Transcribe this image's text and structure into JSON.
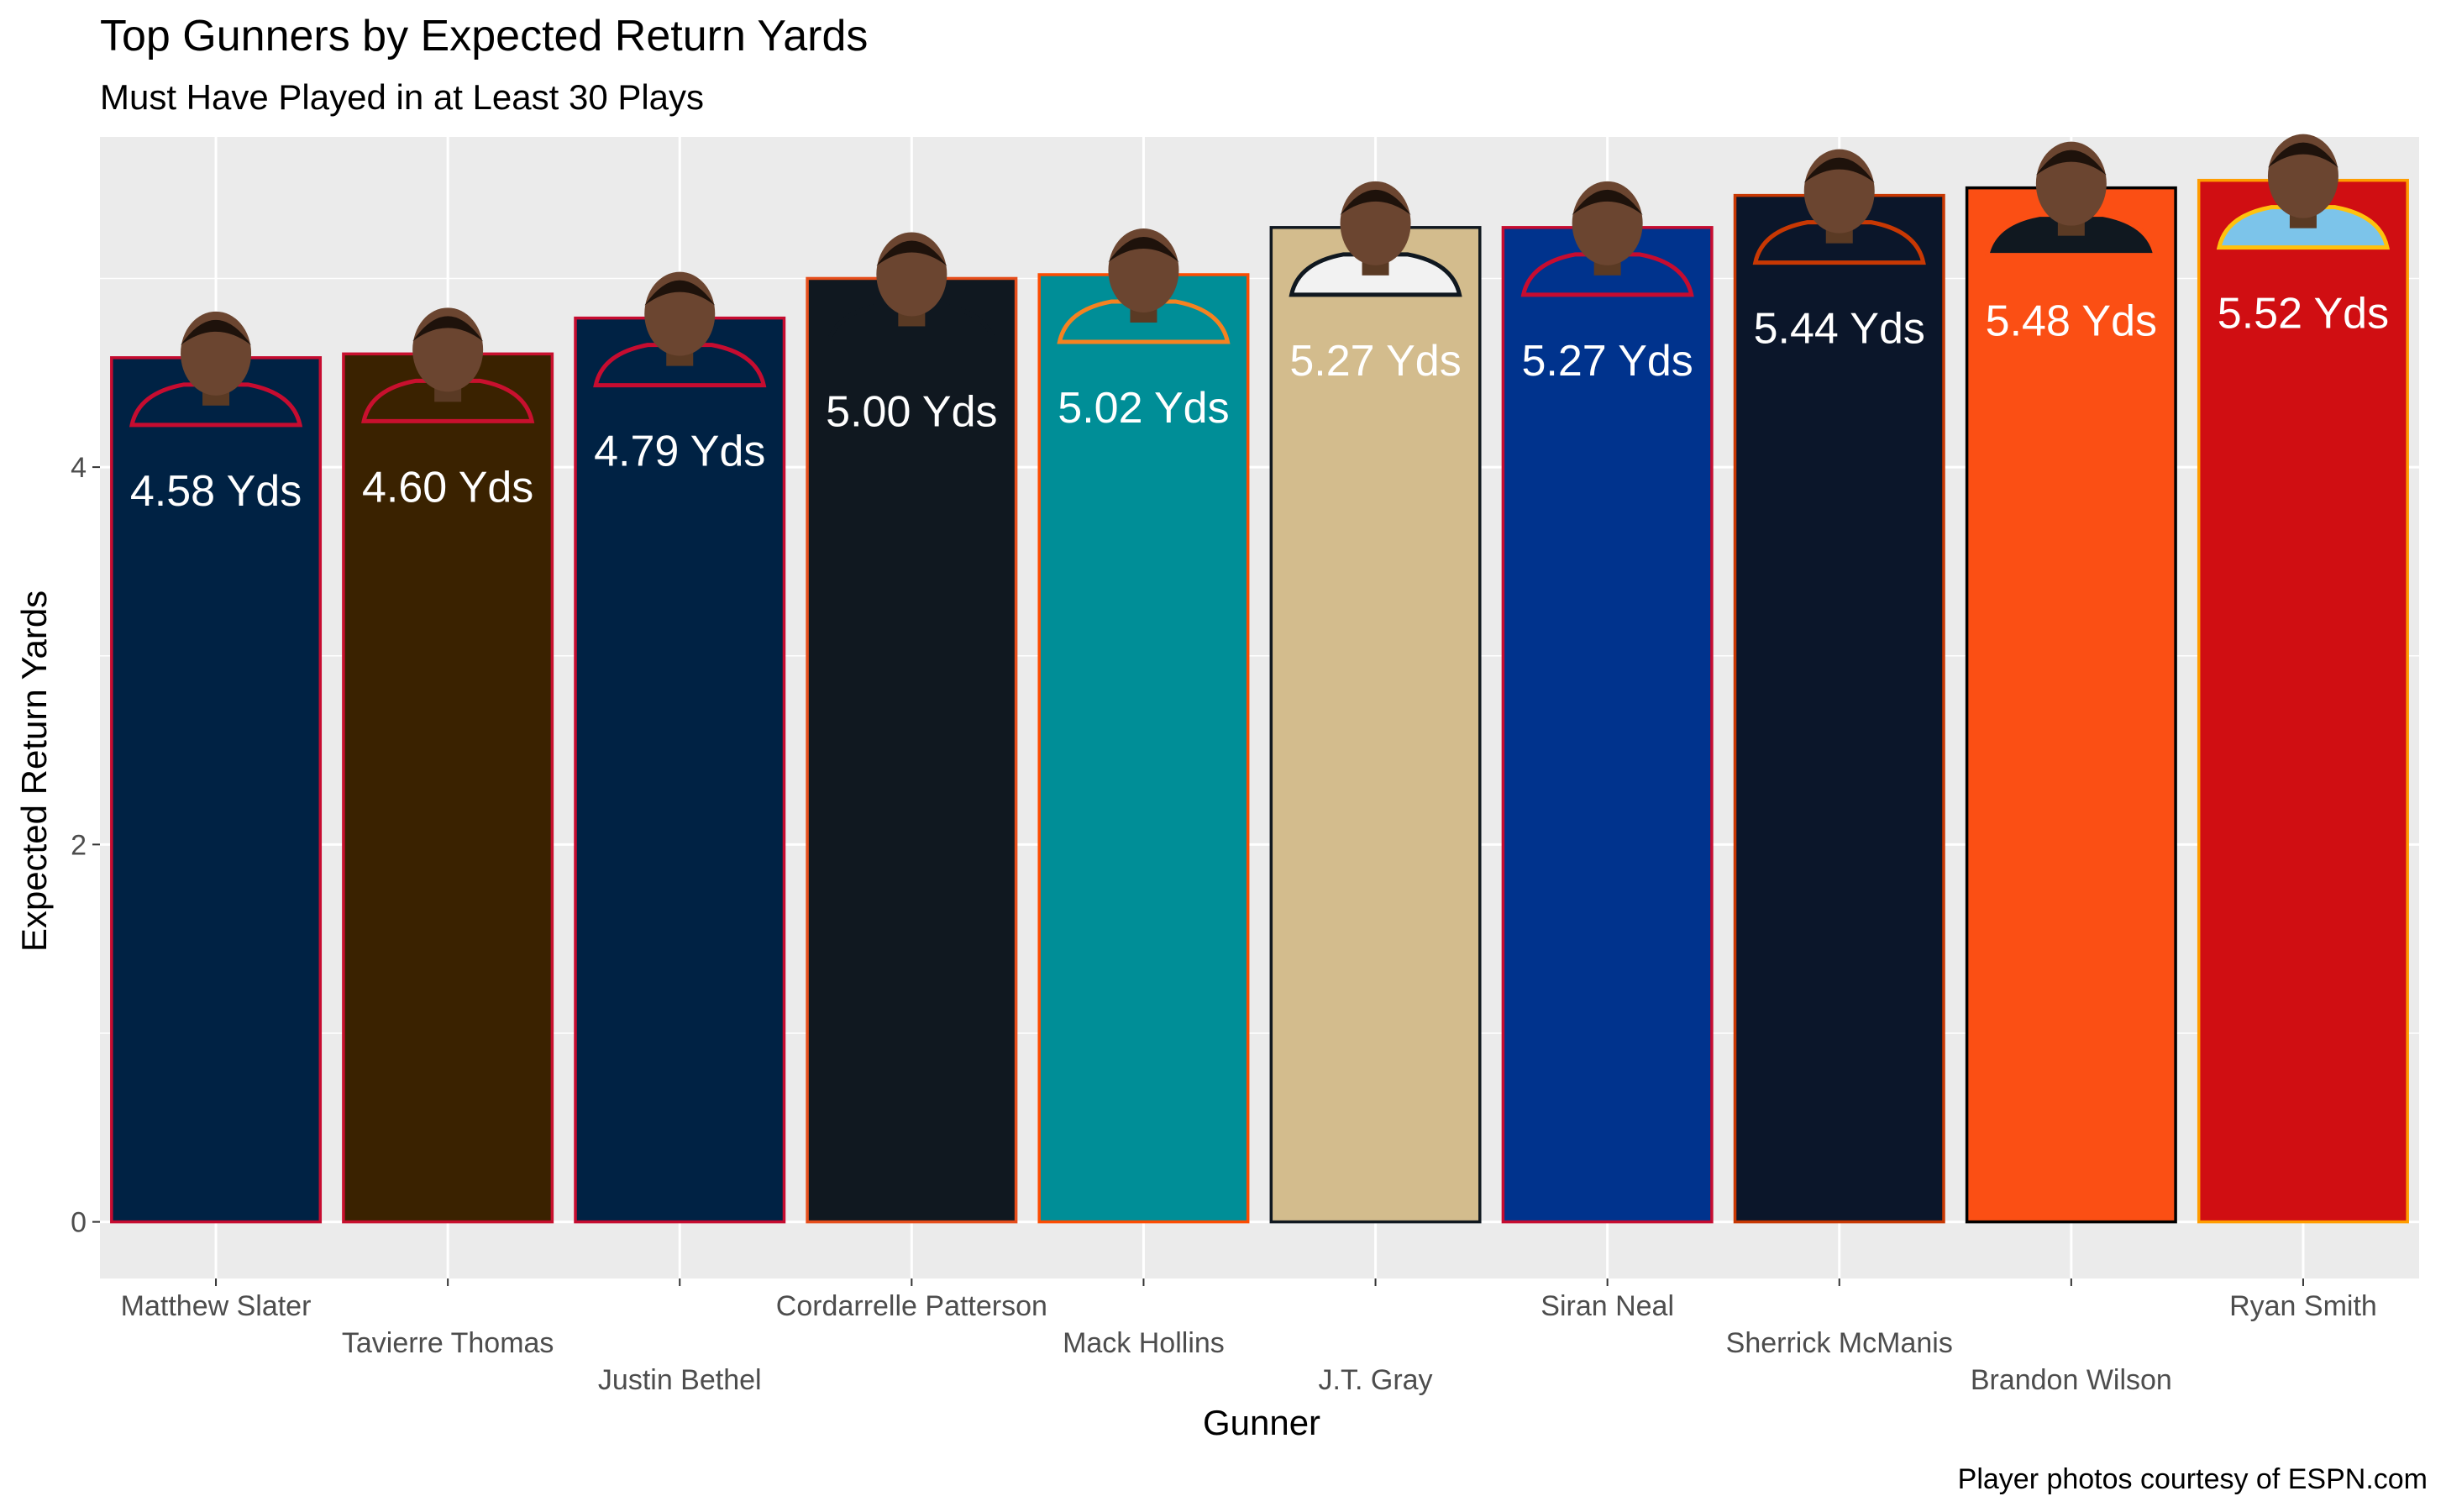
{
  "chart_data": {
    "type": "bar",
    "title": "Top Gunners by Expected Return Yards",
    "subtitle": "Must Have Played in at Least 30 Plays",
    "xlabel": "Gunner",
    "ylabel": "Expected Return Yards",
    "caption": "Player photos courtesy of ESPN.com",
    "ylim": [
      -0.3,
      5.75
    ],
    "yticks": [
      0,
      2,
      4
    ],
    "grid": true,
    "categories": [
      "Matthew Slater",
      "Tavierre Thomas",
      "Justin Bethel",
      "Cordarrelle Patterson",
      "Mack Hollins",
      "J.T. Gray",
      "Siran Neal",
      "Sherrick McManis",
      "Brandon Wilson",
      "Ryan Smith"
    ],
    "values": [
      4.58,
      4.6,
      4.79,
      5.0,
      5.02,
      5.27,
      5.27,
      5.44,
      5.48,
      5.52
    ],
    "data_labels": [
      "4.58 Yds",
      "4.60 Yds",
      "4.79 Yds",
      "5.00 Yds",
      "5.02 Yds",
      "5.27 Yds",
      "5.27 Yds",
      "5.44 Yds",
      "5.48 Yds",
      "5.52 Yds"
    ],
    "fill_colors": [
      "#002244",
      "#3a2200",
      "#002244",
      "#101820",
      "#008e97",
      "#d3bc8d",
      "#00338d",
      "#0b162a",
      "#fb4f14",
      "#d00e12"
    ],
    "outline_colors": [
      "#c60c30",
      "#c8102e",
      "#c60c30",
      "#e64e1c",
      "#fc4c02",
      "#101820",
      "#c60c30",
      "#c83803",
      "#000000",
      "#ff9d00"
    ],
    "label_colors": [
      "#ffffff",
      "#ffffff",
      "#ffffff",
      "#ffffff",
      "#ffffff",
      "#ffffff",
      "#ffffff",
      "#ffffff",
      "#ffffff",
      "#ffffff"
    ],
    "jersey_colors": [
      "#002244",
      "#3a2200",
      "#002244",
      "#101820",
      "#008e97",
      "#f2f2f2",
      "#00338d",
      "#0b162a",
      "#101820",
      "#7cc4ea"
    ],
    "jersey_trim": [
      "#c60c30",
      "#c8102e",
      "#c60c30",
      "#101820",
      "#f58220",
      "#101820",
      "#c60c30",
      "#c83803",
      "#fb4f14",
      "#ffc20e"
    ],
    "panel_color": "#ebebeb",
    "grid_color": "#ffffff"
  }
}
